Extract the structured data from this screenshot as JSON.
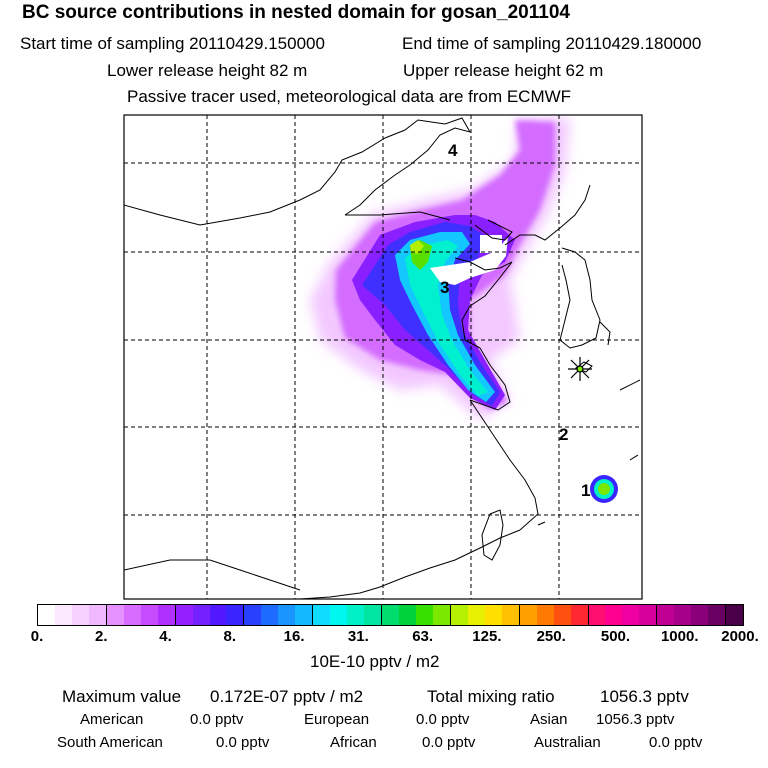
{
  "header": {
    "title": "BC  source contributions in nested domain for gosan_201104",
    "start_sampling": "Start time of sampling 20110429.150000",
    "end_sampling": "End time of sampling 20110429.180000",
    "lower_release": "Lower release height   82 m",
    "upper_release": "Upper release height   62 m",
    "tracer_note": "Passive tracer used, meteorological data are from ECMWF"
  },
  "map": {
    "labels": [
      "1",
      "2",
      "3",
      "4"
    ]
  },
  "colorbar": {
    "ticks": [
      "0.",
      "2.",
      "4.",
      "8.",
      "16.",
      "31.",
      "63.",
      "125.",
      "250.",
      "500.",
      "1000.",
      "2000."
    ],
    "units": "10E-10 pptv / m2",
    "colors": [
      "#ffffff",
      "#fbe8ff",
      "#f6d1ff",
      "#f0b8ff",
      "#e591ff",
      "#d86cff",
      "#c84cff",
      "#b030ff",
      "#9420ff",
      "#7420ff",
      "#5218ff",
      "#3a24ff",
      "#2a40ff",
      "#1e6cff",
      "#1a94ff",
      "#14b8ff",
      "#10dcff",
      "#00f7f0",
      "#00f0c8",
      "#00e6a0",
      "#00dc6e",
      "#00d23c",
      "#38e000",
      "#7ae800",
      "#b4f000",
      "#e6f000",
      "#ffe000",
      "#ffc000",
      "#ffa000",
      "#ff7a00",
      "#ff5010",
      "#ff2830",
      "#ff1070",
      "#ff0090",
      "#f000a0",
      "#d8009c",
      "#c00094",
      "#a6008a",
      "#8a0078",
      "#6a0062",
      "#4a0048"
    ]
  },
  "stats": {
    "max_label": "Maximum value",
    "max_value": "0.172E-07 pptv / m2",
    "total_label": "Total mixing ratio",
    "total_value": "1056.3 pptv",
    "regions": [
      {
        "name": "American",
        "value": "0.0 pptv"
      },
      {
        "name": "European",
        "value": "0.0 pptv"
      },
      {
        "name": "Asian",
        "value": "1056.3 pptv"
      },
      {
        "name": "South American",
        "value": "0.0 pptv"
      },
      {
        "name": "African",
        "value": "0.0 pptv"
      },
      {
        "name": "Australian",
        "value": "0.0 pptv"
      }
    ]
  }
}
